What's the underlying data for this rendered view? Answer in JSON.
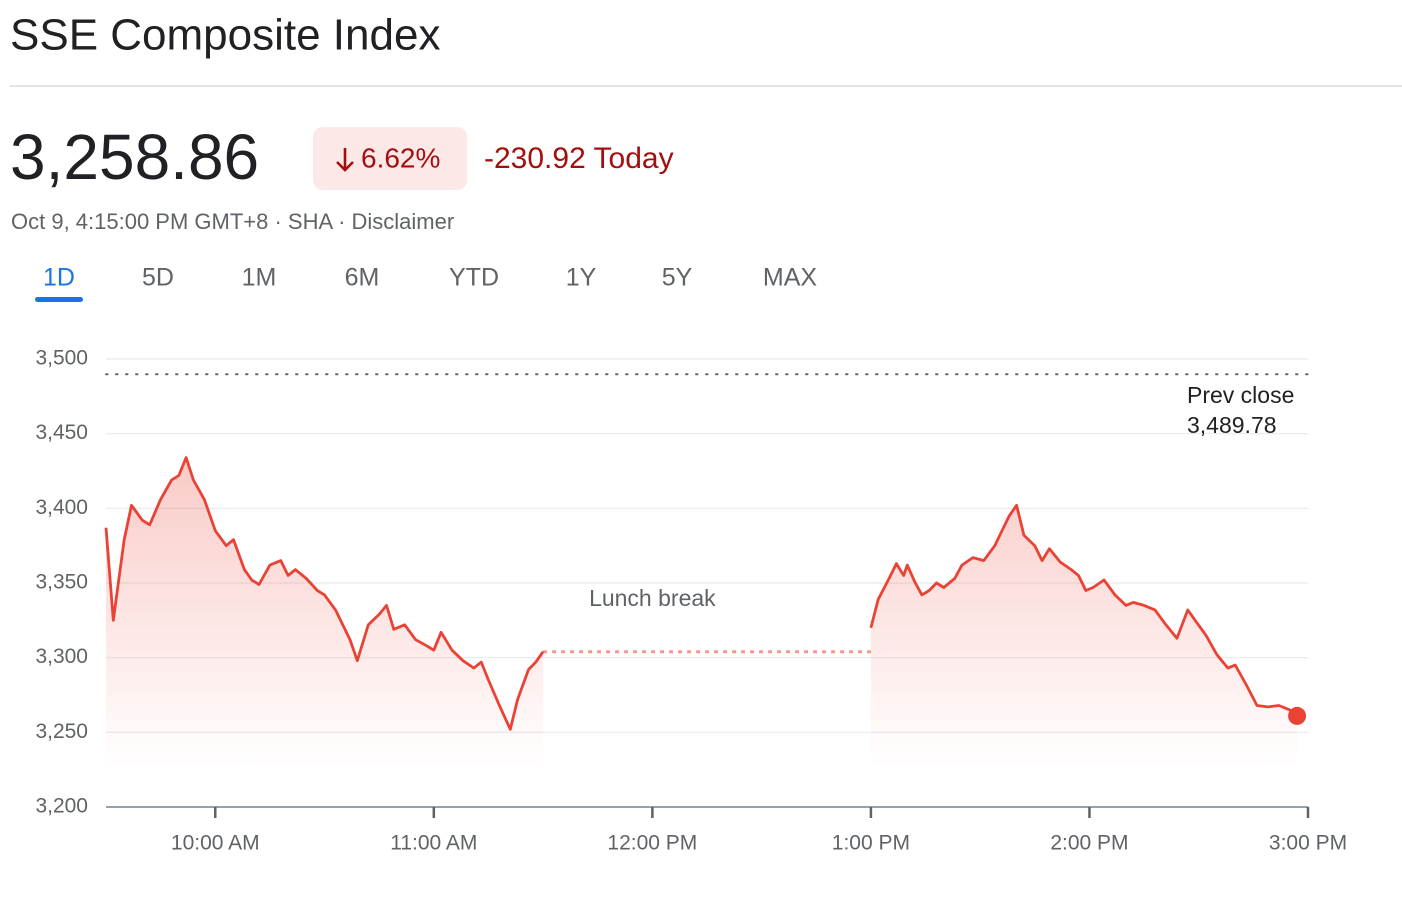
{
  "header": {
    "title": "SSE Composite Index",
    "price": "3,258.86",
    "change_pct": "6.62%",
    "change_abs": "-230.92 Today",
    "meta": "Oct 9, 4:15:00 PM GMT+8 · SHA · Disclaimer"
  },
  "tabs": {
    "items": [
      "1D",
      "5D",
      "1M",
      "6M",
      "YTD",
      "1Y",
      "5Y",
      "MAX"
    ],
    "active": 0
  },
  "chart_data": {
    "type": "line",
    "x": [
      570,
      572,
      575,
      577,
      580,
      582,
      585,
      588,
      590,
      592,
      594,
      597,
      600,
      603,
      605,
      608,
      610,
      612,
      615,
      618,
      620,
      622,
      625,
      628,
      630,
      633,
      637,
      639,
      642,
      645,
      647,
      649,
      652,
      655,
      658,
      660,
      662,
      665,
      668,
      671,
      673,
      675,
      678,
      681,
      683,
      686,
      688,
      690,
      735,
      780,
      782,
      785,
      787,
      789,
      790,
      792,
      794,
      796,
      798,
      800,
      803,
      805,
      808,
      811,
      814,
      816,
      818,
      820,
      822,
      825,
      827,
      829,
      832,
      835,
      837,
      839,
      841,
      844,
      847,
      850,
      852,
      855,
      858,
      861,
      864,
      867,
      869,
      872,
      875,
      878,
      880,
      883,
      886,
      889,
      892,
      895,
      897
    ],
    "series": [
      {
        "color": "#ea4335",
        "values": [
          3387,
          3325,
          3379,
          3402,
          3392,
          3389,
          3406,
          3419,
          3422,
          3434,
          3419,
          3406,
          3385,
          3375,
          3379,
          3359,
          3352,
          3349,
          3362,
          3365,
          3355,
          3359,
          3353,
          3345,
          3342,
          3332,
          3312,
          3298,
          3322,
          3329,
          3335,
          3319,
          3322,
          3312,
          3308,
          3305,
          3317,
          3305,
          3298,
          3293,
          3297,
          3285,
          3268,
          3252,
          3272,
          3292,
          3297,
          3304,
          null,
          3320,
          3339,
          3353,
          3363,
          3355,
          3362,
          3351,
          3342,
          3345,
          3350,
          3347,
          3353,
          3362,
          3367,
          3365,
          3375,
          3385,
          3395,
          3402,
          3382,
          3375,
          3365,
          3373,
          3364,
          3359,
          3355,
          3345,
          3347,
          3352,
          3342,
          3335,
          3337,
          3335,
          3332,
          3322,
          3313,
          3332,
          3325,
          3315,
          3302,
          3293,
          3295,
          3282,
          3268,
          3267,
          3268,
          3265,
          3261
        ]
      }
    ],
    "xlim": [
      570,
      900
    ],
    "xticks": [
      {
        "value": 600,
        "label": "10:00 AM"
      },
      {
        "value": 660,
        "label": "11:00 AM"
      },
      {
        "value": 720,
        "label": "12:00 PM"
      },
      {
        "value": 780,
        "label": "1:00 PM"
      },
      {
        "value": 840,
        "label": "2:00 PM"
      },
      {
        "value": 900,
        "label": "3:00 PM"
      }
    ],
    "ylim": [
      3200,
      3500
    ],
    "yticks": [
      {
        "value": 3200,
        "label": "3,200"
      },
      {
        "value": 3250,
        "label": "3,250"
      },
      {
        "value": 3300,
        "label": "3,300"
      },
      {
        "value": 3350,
        "label": "3,350"
      },
      {
        "value": 3400,
        "label": "3,400"
      },
      {
        "value": 3450,
        "label": "3,450"
      },
      {
        "value": 3500,
        "label": "3,500"
      }
    ],
    "grid": true,
    "prev_close_label": "Prev close",
    "prev_close": {
      "value": 3489.78,
      "label": "3,489.78"
    },
    "annotation": "Lunch break"
  }
}
